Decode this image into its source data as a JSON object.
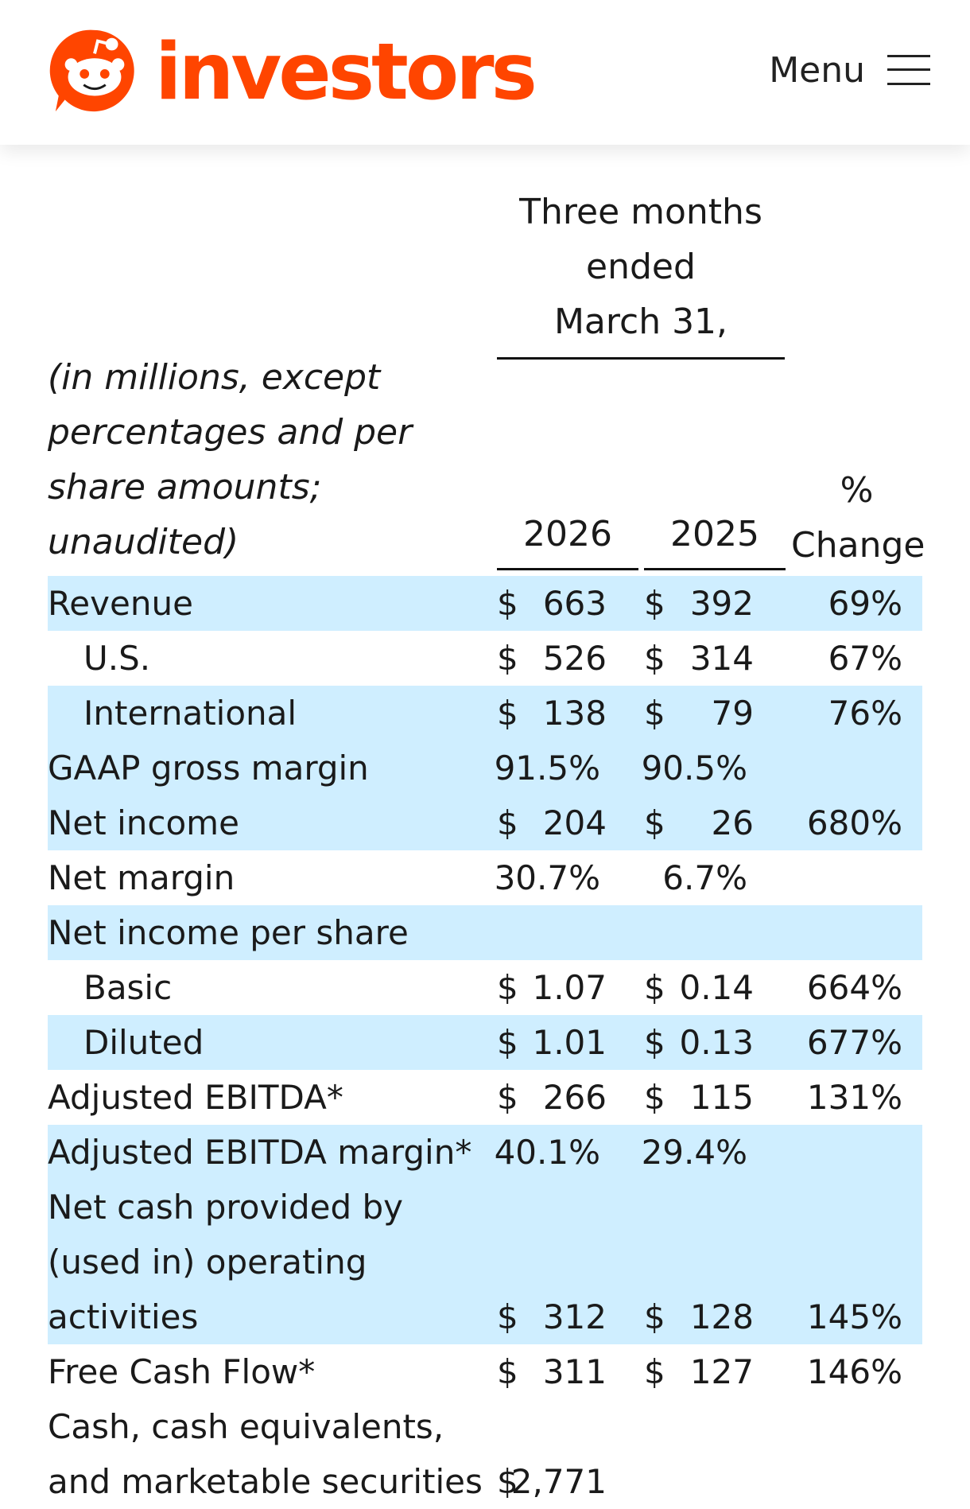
{
  "header": {
    "brand": "investors",
    "menu_label": "Menu",
    "logo_icon": "reddit-snoo-logo-icon",
    "brand_color": "#ff4500"
  },
  "table": {
    "period_heading": [
      "Three months",
      "ended",
      "March 31,"
    ],
    "units_note": "(in millions, except percentages and per share amounts; unaudited)",
    "columns": {
      "year1": "2026",
      "year2": "2025",
      "change": "% Change"
    },
    "change_heading": [
      "%",
      "Change"
    ],
    "shade_color": "#cfeeff",
    "rows": [
      {
        "label": "Revenue",
        "cur1": "$",
        "v1": "663",
        "cur2": "$",
        "v2": "392",
        "change": "69%"
      },
      {
        "label": "U.S.",
        "cur1": "$",
        "v1": "526",
        "cur2": "$",
        "v2": "314",
        "change": "67%"
      },
      {
        "label": "International",
        "cur1": "$",
        "v1": "138",
        "cur2": "$",
        "v2": "79",
        "change": "76%"
      },
      {
        "label": "GAAP gross margin",
        "v1": "91.5%",
        "v2": "90.5%"
      },
      {
        "label": "Net income",
        "cur1": "$",
        "v1": "204",
        "cur2": "$",
        "v2": "26",
        "change": "680%"
      },
      {
        "label": "Net margin",
        "v1": "30.7%",
        "v2": "6.7%"
      },
      {
        "label": "Net income per share"
      },
      {
        "label": "Basic",
        "cur1": "$",
        "v1": "1.07",
        "cur2": "$",
        "v2": "0.14",
        "change": "664%"
      },
      {
        "label": "Diluted",
        "cur1": "$",
        "v1": "1.01",
        "cur2": "$",
        "v2": "0.13",
        "change": "677%"
      },
      {
        "label": "Adjusted EBITDA*",
        "cur1": "$",
        "v1": "266",
        "cur2": "$",
        "v2": "115",
        "change": "131%"
      },
      {
        "label": "Adjusted EBITDA margin*",
        "v1": "40.1%",
        "v2": "29.4%"
      },
      {
        "label": "Net cash provided by (used in) operating activities",
        "cur1": "$",
        "v1": "312",
        "cur2": "$",
        "v2": "128",
        "change": "145%"
      },
      {
        "label": "Free Cash Flow*",
        "cur1": "$",
        "v1": "311",
        "cur2": "$",
        "v2": "127",
        "change": "146%"
      },
      {
        "label": "Cash, cash equivalents, and marketable securities",
        "cur1": "$",
        "v1": "2,771"
      }
    ]
  }
}
